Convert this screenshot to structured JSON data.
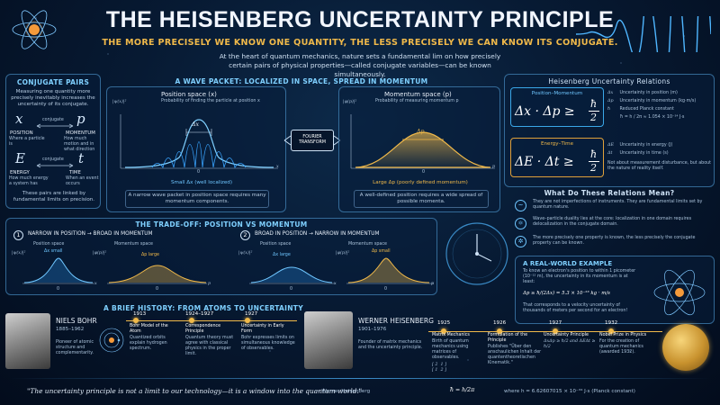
{
  "header": {
    "title": "THE HEISENBERG UNCERTAINTY PRINCIPLE",
    "subtitle": "THE MORE PRECISELY WE KNOW ONE QUANTITY, THE LESS PRECISELY WE CAN KNOW ITS CONJUGATE.",
    "intro": "At the heart of quantum mechanics, nature sets a fundamental lim on how precisely certain pairs of physical properties—called conjugate variables—can be known simultaneously."
  },
  "conjugate": {
    "heading": "CONJUGATE PAIRS",
    "desc": "Measuring one quantity more precisely inevitably increases the uncertainty of its conjugate.",
    "pairs": [
      {
        "a_sym": "x",
        "a_name": "POSITION",
        "a_desc": "Where a particle is",
        "link": "conjugate",
        "b_sym": "p",
        "b_name": "MOMENTUM",
        "b_desc": "How much motion and in what direction"
      },
      {
        "a_sym": "E",
        "a_name": "ENERGY",
        "a_desc": "How much energy a system has",
        "link": "conjugate",
        "b_sym": "t",
        "b_name": "TIME",
        "b_desc": "When an event occurs"
      }
    ],
    "footer": "These pairs are linked by fundamental limits on precision."
  },
  "wavepacket": {
    "heading": "A WAVE PACKET: LOCALIZED IN SPACE, SPREAD IN MOMENTUM",
    "pos_title": "Position space (x)",
    "pos_sub": "Probability of finding the particle at position x",
    "pos_axis": "|ψ(x)|²",
    "pos_dx": "Δx",
    "pos_zero": "0",
    "pos_x": "x",
    "pos_note": "Small Δx (well localized)",
    "pos_caption": "A narrow wave packet in position space requires many momentum components.",
    "transform": "FOURIER\nTRANSFORM",
    "transform_1": "FOURIER",
    "transform_2": "TRANSFORM",
    "mom_title": "Momentum space (p)",
    "mom_sub": "Probability of measuring momentum p",
    "mom_axis": "|φ(p)|²",
    "mom_dp": "Δp",
    "mom_zero": "0",
    "mom_p": "p",
    "mom_note": "Large Δp (poorly defined momentum)",
    "mom_caption": "A well-defined position requires a wide spread of possible momenta."
  },
  "relations": {
    "heading": "Heisenberg Uncertainty Relations",
    "pm_label": "Position–Momentum",
    "pm_eq": "Δx · Δp ≥ ħ/2",
    "pm_lhs": "Δx · Δp ≥",
    "et_label": "Energy–Time",
    "et_lhs": "ΔE · Δt ≥",
    "frac_num": "ħ",
    "frac_den": "2",
    "legend": [
      {
        "sym": "Δx",
        "text": "Uncertainty in position (m)"
      },
      {
        "sym": "Δp",
        "text": "Uncertainty in momentum (kg·m/s)"
      },
      {
        "sym": "ħ",
        "text": "Reduced Planck constant"
      },
      {
        "sym": "",
        "text": "ħ = h / 2π ≈ 1.054 × 10⁻³⁴ J·s"
      }
    ],
    "legend2": [
      {
        "sym": "ΔE",
        "text": "Uncertainty in energy (J)"
      },
      {
        "sym": "Δt",
        "text": "Uncertainty in time (s)"
      }
    ],
    "note": "Not about measurement disturbance, but about the nature of reality itself."
  },
  "meaning": {
    "heading": "What Do These Relations Mean?",
    "items": [
      "They are not imperfections of instruments. They are fundamental limits set by quantum nature.",
      "Wave–particle duality lies at the core: localization in one domain requires delocalization in the conjugate domain.",
      "The more precisely one property is known, the less precisely the conjugate property can be known."
    ]
  },
  "tradeoff": {
    "heading": "THE TRADE-OFF: POSITION VS MOMENTUM",
    "case1": {
      "num": "1",
      "title": "NARROW IN POSITION → BROAD IN MOMENTUM",
      "pos_label": "Position space",
      "mom_label": "Momentum space",
      "dx": "Δx small",
      "dp": "Δp large",
      "pos_axis": "|ψ(x)|²",
      "mom_axis": "|φ(p)|²",
      "zero": "0",
      "x": "x",
      "p": "p"
    },
    "case2": {
      "num": "2",
      "title": "BROAD IN POSITION → NARROW IN MOMENTUM",
      "pos_label": "Position space",
      "mom_label": "Momentum space",
      "dx": "Δx large",
      "dp": "Δp small",
      "pos_axis": "|ψ(x)|²",
      "mom_axis": "|φ(p)|²",
      "zero": "0",
      "x": "x",
      "p": "p"
    }
  },
  "realworld": {
    "heading": "A REAL-WORLD EXAMPLE",
    "text1": "To know an electron's position to within 1 picometer (10⁻¹² m), the uncertainty in its momentum is at least:",
    "formula": "Δp ≥ ħ/(2Δx) = 5.3 × 10⁻²³ kg · m/s",
    "text2": "That corresponds to a velocity uncertainty of thousands of meters per second for an electron!"
  },
  "history": {
    "heading": "A BRIEF HISTORY: FROM ATOMS TO UNCERTAINTY",
    "bohr_name": "NIELS BOHR",
    "bohr_years": "1885–1962",
    "bohr_desc": "Pioneer of atomic structure and complementarity.",
    "heis_name": "WERNER HEISENBERG",
    "heis_years": "1901–1976",
    "heis_desc": "Founder of matrix mechanics and the uncertainty principle.",
    "events_left": [
      {
        "year": "1913",
        "title": "Bohr Model of the Atom",
        "desc": "Quantized orbits explain hydrogen spectrum."
      },
      {
        "year": "1924–1927",
        "title": "Correspondence Principle",
        "desc": "Quantum theory must agree with classical physics in the proper limit."
      },
      {
        "year": "1927",
        "title": "Uncertainty in Early Form",
        "desc": "Bohr expresses limits on simultaneous knowledge of observables."
      }
    ],
    "events_right": [
      {
        "year": "1925",
        "title": "Matrix Mechanics",
        "desc": "Birth of quantum mechanics using matrices of observables."
      },
      {
        "year": "1926",
        "title": "Formulation of the Principle",
        "desc": "Publishes \"Über den anschaulichen Inhalt der quantentheoretischen Kinematik.\""
      },
      {
        "year": "1927",
        "title": "Uncertainty Principle",
        "desc": "ΔxΔp ≥ ħ/2 and ΔEΔt ≥ ħ/2"
      },
      {
        "year": "1932",
        "title": "Nobel Prize in Physics",
        "desc": "For the creation of quantum mechanics (awarded 1932)."
      }
    ],
    "matrix": "[ 2  1 ]\n[ 1  2 ]"
  },
  "footer": {
    "quote": "\"The uncertainty principle is not a limit to our technology—it is a window into the quantum world.\"",
    "author": "— Werner Heisenberg",
    "hbar": "ħ = h/2π",
    "planck": "where  h = 6.62607015 × 10⁻³⁴ J·s   (Planck constant)"
  },
  "colors": {
    "accent_blue": "#6fc6ff",
    "accent_orange": "#f0b94a",
    "background": "#071a33"
  }
}
